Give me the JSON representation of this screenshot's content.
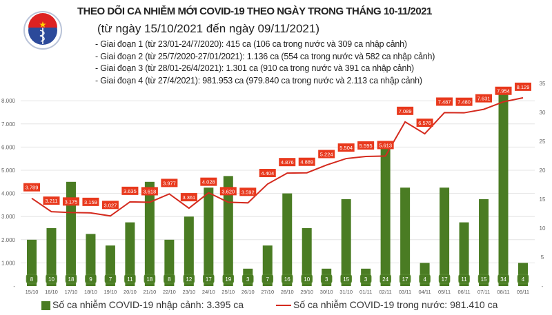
{
  "header": {
    "logo_text": "BỘ Y TẾ · MINISTRY OF HEALTH",
    "title": "THEO DÕI CA NHIỄM MỚI COVID-19 THEO NGÀY TRONG THÁNG 10-11/2021",
    "subtitle": "(từ ngày 15/10/2021 đến ngày 09/11/2021)",
    "stages": [
      "- Giai đoạn 1 (từ 23/01-24/7/2020): 415 ca (106 ca trong nước và 309 ca nhập cảnh)",
      "- Giai đoạn 2 (từ 25/7/2020-27/01/2021): 1.136 ca (554 ca trong nước và 582 ca nhập cảnh)",
      "- Giai đoạn 3 (từ 28/01-26/4/2021): 1.301 ca (910 ca trong nước và 391 ca nhập cảnh)",
      "- Giai đoạn 4 (từ 27/4/2021): 981.953 ca (979.840 ca trong nước và 2.113 ca nhập cảnh)"
    ]
  },
  "chart_data": {
    "type": "bar+line",
    "categories": [
      "15/10",
      "16/10",
      "17/10",
      "18/10",
      "19/10",
      "20/10",
      "21/10",
      "22/10",
      "23/10",
      "24/10",
      "25/10",
      "26/10",
      "27/10",
      "28/10",
      "29/10",
      "30/10",
      "31/10",
      "01/11",
      "02/11",
      "03/11",
      "04/11",
      "05/11",
      "06/11",
      "07/11",
      "08/11",
      "09/11"
    ],
    "series": [
      {
        "name": "Số ca nhiễm COVID-19 nhập cảnh: 3.395 ca",
        "type": "bar",
        "axis": "right",
        "color": "#4a7c23",
        "values": [
          8,
          10,
          18,
          9,
          7,
          11,
          18,
          8,
          12,
          17,
          19,
          3,
          7,
          16,
          10,
          3,
          15,
          3,
          24,
          17,
          4,
          17,
          11,
          15,
          34,
          4
        ]
      },
      {
        "name": "Số ca nhiễm COVID-19 trong nước: 981.410 ca",
        "type": "line",
        "axis": "left",
        "color": "#d42a1e",
        "values": [
          3789,
          3211,
          3175,
          3159,
          3027,
          3635,
          3618,
          3977,
          3361,
          4028,
          3620,
          3592,
          4404,
          4876,
          4889,
          5224,
          5504,
          5595,
          5613,
          7089,
          6576,
          7487,
          7480,
          7631,
          7954,
          8129
        ]
      }
    ],
    "left_axis": {
      "ticks": [
        "-",
        "1.000",
        "2.000",
        "3.000",
        "4.000",
        "5.000",
        "6.000",
        "7.000",
        "8.000"
      ],
      "tick_values": [
        0,
        1000,
        2000,
        3000,
        4000,
        5000,
        6000,
        7000,
        8000
      ],
      "range": [
        0,
        8750
      ]
    },
    "right_axis": {
      "ticks": [
        "-",
        "5",
        "10",
        "15",
        "20",
        "25",
        "30",
        "35"
      ],
      "tick_values": [
        0,
        5,
        10,
        15,
        20,
        25,
        30,
        35
      ],
      "range": [
        0,
        35
      ]
    },
    "line_labels": [
      "3.789",
      "3.211",
      "3.175",
      "3.159",
      "3.027",
      "3.635",
      "3.618",
      "3.977",
      "3.361",
      "4.028",
      "3.620",
      "3.592",
      "4.404",
      "4.876",
      "4.889",
      "5.224",
      "5.504",
      "5.595",
      "5.613",
      "7.089",
      "6.576",
      "7.487",
      "7.480",
      "7.631",
      "7.954",
      "8.129"
    ],
    "grid": true,
    "legend": "bottom"
  }
}
